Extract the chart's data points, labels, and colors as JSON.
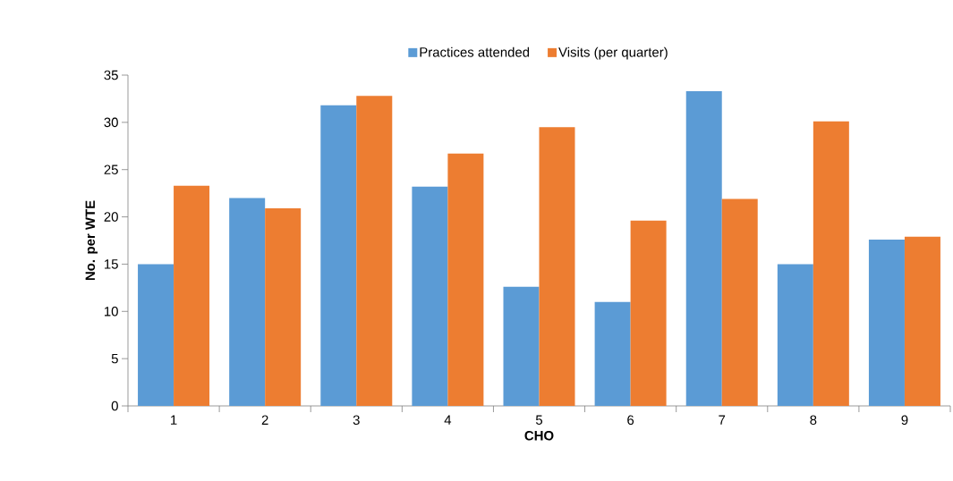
{
  "chart_data": {
    "type": "bar",
    "xlabel": "CHO",
    "ylabel": "No. per WTE",
    "categories": [
      "1",
      "2",
      "3",
      "4",
      "5",
      "6",
      "7",
      "8",
      "9"
    ],
    "series": [
      {
        "name": "Practices attended",
        "color": "#5b9bd5",
        "values": [
          15.0,
          22.0,
          31.8,
          23.2,
          12.6,
          11.0,
          33.3,
          15.0,
          17.6
        ]
      },
      {
        "name": "Visits (per quarter)",
        "color": "#ed7d31",
        "values": [
          23.3,
          20.9,
          32.8,
          26.7,
          29.5,
          19.6,
          21.9,
          30.1,
          17.9
        ]
      }
    ],
    "ylim": [
      0,
      35
    ],
    "yticks": [
      0,
      5,
      10,
      15,
      20,
      25,
      30,
      35
    ],
    "legend": "top"
  }
}
